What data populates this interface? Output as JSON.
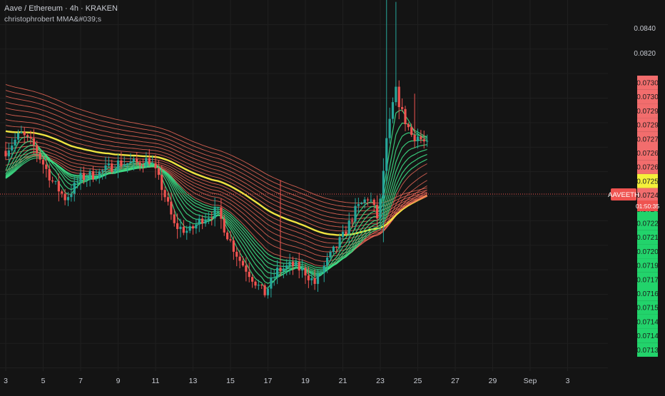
{
  "header": {
    "title": "Aave / Ethereum · 4h · KRAKEN",
    "indicator": "christophrobert MMA&#039;s"
  },
  "colors": {
    "background": "#141414",
    "grid": "#1f1f1f",
    "up": "#26a69a",
    "down": "#ef5350",
    "ema_upper": "#f26b5b",
    "ema_lower": "#3ddc84",
    "ema_key": "#f0e442",
    "label_red": "#f26d6d",
    "label_green": "#22d36b",
    "label_yellow": "#f5f03a",
    "current_label": "#ef5350"
  },
  "symbol_label": "AAVEETH",
  "countdown": "01:50:35",
  "chart_data": {
    "type": "candlestick",
    "x_axis": {
      "labels": [
        "3",
        "5",
        "7",
        "9",
        "11",
        "13",
        "15",
        "17",
        "19",
        "21",
        "23",
        "25",
        "27",
        "29",
        "Sep",
        "3"
      ]
    },
    "y_axis": {
      "right_labels": [
        "0.0840",
        "0.0820"
      ],
      "ylim": [
        0.069,
        0.085
      ]
    },
    "current_price": 0.0724,
    "right_price_labels": [
      {
        "value": "0.0730",
        "color": "red"
      },
      {
        "value": "0.0730",
        "color": "red"
      },
      {
        "value": "0.0729",
        "color": "red"
      },
      {
        "value": "0.0729",
        "color": "red"
      },
      {
        "value": "0.0727",
        "color": "red"
      },
      {
        "value": "0.0726",
        "color": "red"
      },
      {
        "value": "0.0726",
        "color": "red"
      },
      {
        "value": "0.0725",
        "color": "yellow"
      },
      {
        "value": "0.0724",
        "color": "red"
      },
      {
        "value": "0.0724",
        "color": "green"
      },
      {
        "value": "0.0722",
        "color": "green"
      },
      {
        "value": "0.0721",
        "color": "green"
      },
      {
        "value": "0.0720",
        "color": "green"
      },
      {
        "value": "0.0719",
        "color": "green"
      },
      {
        "value": "0.0717",
        "color": "green"
      },
      {
        "value": "0.0716",
        "color": "green"
      },
      {
        "value": "0.0715",
        "color": "green"
      },
      {
        "value": "0.0714",
        "color": "green"
      },
      {
        "value": "0.0714",
        "color": "green"
      },
      {
        "value": "0.0713",
        "color": "green"
      }
    ],
    "price_path": [
      {
        "day": 3.0,
        "price": 0.07885
      },
      {
        "day": 3.8,
        "price": 0.07955
      },
      {
        "day": 4.5,
        "price": 0.07905
      },
      {
        "day": 5.5,
        "price": 0.0776
      },
      {
        "day": 6.2,
        "price": 0.0769
      },
      {
        "day": 7.0,
        "price": 0.07775
      },
      {
        "day": 8.0,
        "price": 0.07795
      },
      {
        "day": 9.0,
        "price": 0.07835
      },
      {
        "day": 10.0,
        "price": 0.07835
      },
      {
        "day": 10.7,
        "price": 0.0785
      },
      {
        "day": 11.4,
        "price": 0.07725
      },
      {
        "day": 12.0,
        "price": 0.0758
      },
      {
        "day": 12.8,
        "price": 0.07555
      },
      {
        "day": 13.5,
        "price": 0.0761
      },
      {
        "day": 14.3,
        "price": 0.0764
      },
      {
        "day": 14.9,
        "price": 0.0753
      },
      {
        "day": 15.5,
        "price": 0.0744
      },
      {
        "day": 16.2,
        "price": 0.07365
      },
      {
        "day": 16.8,
        "price": 0.073
      },
      {
        "day": 17.5,
        "price": 0.07395
      },
      {
        "day": 18.3,
        "price": 0.0742
      },
      {
        "day": 19.0,
        "price": 0.0739
      },
      {
        "day": 19.5,
        "price": 0.07345
      },
      {
        "day": 20.2,
        "price": 0.0744
      },
      {
        "day": 21.0,
        "price": 0.07535
      },
      {
        "day": 21.7,
        "price": 0.07645
      },
      {
        "day": 22.4,
        "price": 0.077
      },
      {
        "day": 22.9,
        "price": 0.076
      },
      {
        "day": 23.3,
        "price": 0.07905
      },
      {
        "day": 23.8,
        "price": 0.08135
      },
      {
        "day": 24.2,
        "price": 0.0803
      },
      {
        "day": 24.7,
        "price": 0.07945
      },
      {
        "day": 25.0,
        "price": 0.07945
      },
      {
        "day": 25.5,
        "price": 0.07905
      }
    ],
    "emas": {
      "upper_count": 16,
      "lower_count": 8,
      "key_line_index": 7
    }
  }
}
